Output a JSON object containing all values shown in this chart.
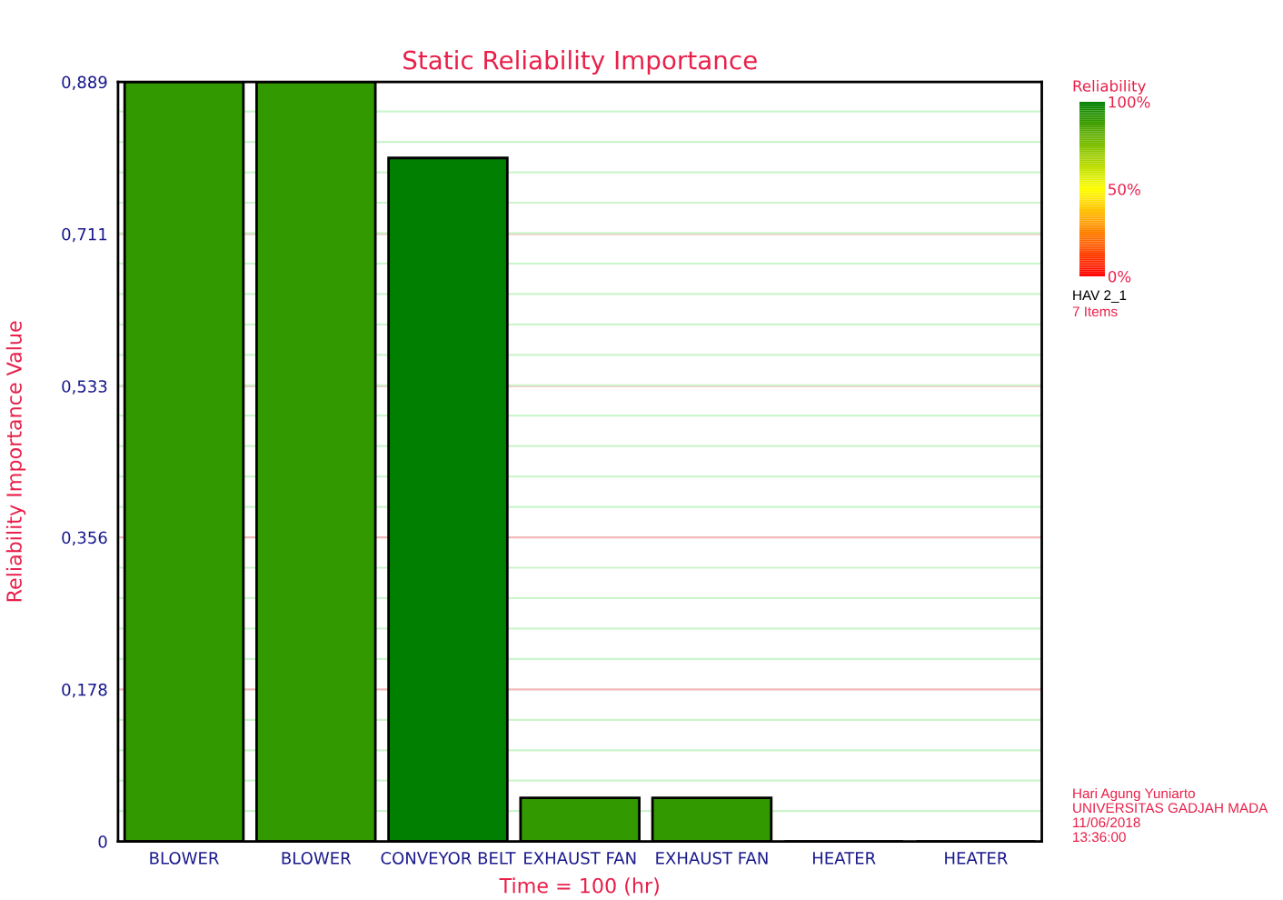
{
  "chart_data": {
    "type": "bar",
    "title": "Static Reliability Importance",
    "xlabel": "Time = 100 (hr)",
    "ylabel": "Reliability Importance Value",
    "categories": [
      "BLOWER",
      "BLOWER",
      "CONVEYOR BELT",
      "EXHAUST FAN",
      "EXHAUST FAN",
      "HEATER",
      "HEATER"
    ],
    "values": [
      0.889,
      0.889,
      0.8,
      0.051,
      0.051,
      0,
      0
    ],
    "colors": [
      "#339900",
      "#339900",
      "#007f00",
      "#339900",
      "#339900",
      "#339900",
      "#339900"
    ],
    "ylim": [
      0,
      0.889
    ],
    "yticks": [
      0,
      {
        "value": 0.178,
        "label": "0,178"
      },
      {
        "value": 0.356,
        "label": "0,356"
      },
      {
        "value": 0.533,
        "label": "0,533"
      },
      {
        "value": 0.711,
        "label": "0,711"
      },
      {
        "value": 0.889,
        "label": "0,889"
      }
    ],
    "grid": "y",
    "clabel": "Reliability",
    "clim": [
      0,
      100
    ],
    "cticks": [
      {
        "value": 0,
        "label": "0%"
      },
      {
        "value": 50,
        "label": "50%"
      },
      {
        "value": 100,
        "label": "100%"
      }
    ],
    "annotations": [
      "HAV 2_1",
      "7 Items",
      "Hari Agung Yuniarto",
      "UNIVERSITAS GADJAH MADA",
      "11/06/2018",
      "13:36:00"
    ]
  }
}
